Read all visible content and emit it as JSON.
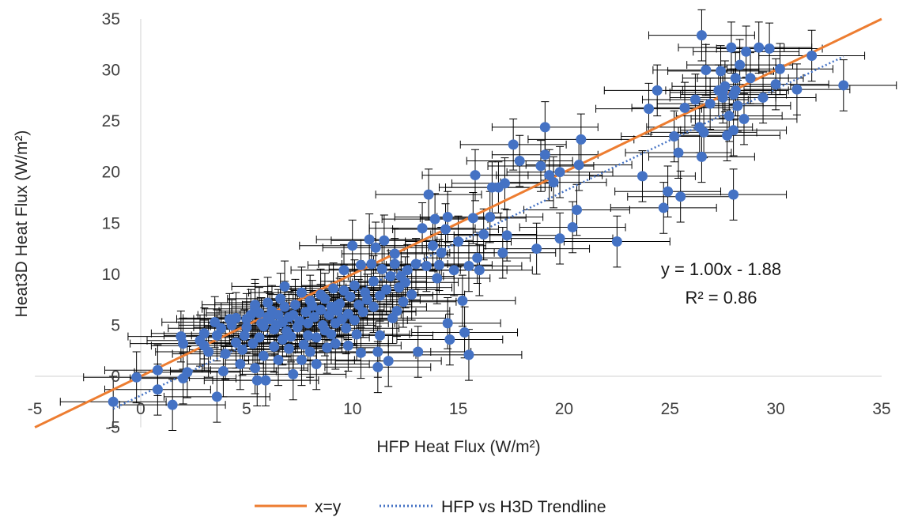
{
  "chart_data": {
    "type": "scatter",
    "xlabel": "HFP Heat Flux (W/m²)",
    "ylabel": "Heat3D Heat Flux (W/m²)",
    "xlim": [
      -5,
      35
    ],
    "ylim": [
      -5,
      35
    ],
    "x_ticks": [
      "-5",
      "0",
      "5",
      "10",
      "15",
      "20",
      "25",
      "30",
      "35"
    ],
    "y_ticks": [
      "-5",
      "0",
      "5",
      "10",
      "15",
      "20",
      "25",
      "30",
      "35"
    ],
    "x_tick_values": [
      -5,
      0,
      5,
      10,
      15,
      20,
      25,
      30,
      35
    ],
    "y_tick_values": [
      -5,
      0,
      5,
      10,
      15,
      20,
      25,
      30,
      35
    ],
    "grid": false,
    "legend_position": "bottom",
    "trendline_equation": "y = 1.00x - 1.88",
    "r_squared": "R² = 0.86",
    "error_bars": {
      "x": 2.5,
      "y": 2.5
    },
    "colors": {
      "points": "#4472c4",
      "identity": "#ed7d31",
      "trend": "#4472c4",
      "error": "#000000",
      "axis": "#d9d9d9"
    },
    "series": [
      {
        "kind": "scatter",
        "points": [
          [
            -1.3,
            -2.5
          ],
          [
            -0.2,
            -0.1
          ],
          [
            0.8,
            0.6
          ],
          [
            0.8,
            -1.3
          ],
          [
            1.5,
            -2.8
          ],
          [
            2.0,
            3.2
          ],
          [
            2.0,
            -0.2
          ],
          [
            2.2,
            0.4
          ],
          [
            1.9,
            3.9
          ],
          [
            2.8,
            3.5
          ],
          [
            3.2,
            2.4
          ],
          [
            3.0,
            3.0
          ],
          [
            3.6,
            -2.0
          ],
          [
            3.9,
            0.5
          ],
          [
            3.0,
            4.2
          ],
          [
            3.5,
            5.3
          ],
          [
            3.6,
            4.0
          ],
          [
            3.8,
            4.7
          ],
          [
            4.0,
            2.2
          ],
          [
            4.2,
            5.6
          ],
          [
            4.3,
            5.0
          ],
          [
            4.5,
            3.3
          ],
          [
            4.5,
            5.7
          ],
          [
            4.7,
            1.2
          ],
          [
            4.8,
            2.6
          ],
          [
            4.9,
            4.0
          ],
          [
            5.0,
            5.6
          ],
          [
            5.0,
            4.8
          ],
          [
            5.2,
            6.0
          ],
          [
            5.3,
            3.2
          ],
          [
            5.4,
            6.6
          ],
          [
            5.4,
            0.8
          ],
          [
            5.4,
            7.0
          ],
          [
            5.5,
            -0.4
          ],
          [
            5.6,
            3.8
          ],
          [
            5.6,
            6.2
          ],
          [
            5.7,
            5.2
          ],
          [
            5.8,
            2.0
          ],
          [
            5.9,
            -0.4
          ],
          [
            5.8,
            4.9
          ],
          [
            6.0,
            5.8
          ],
          [
            6.0,
            7.2
          ],
          [
            6.1,
            5.6
          ],
          [
            6.2,
            6.4
          ],
          [
            6.3,
            2.9
          ],
          [
            6.3,
            4.6
          ],
          [
            6.4,
            5.0
          ],
          [
            6.5,
            6.0
          ],
          [
            6.5,
            1.6
          ],
          [
            6.6,
            7.6
          ],
          [
            6.7,
            3.6
          ],
          [
            6.7,
            5.3
          ],
          [
            6.8,
            6.8
          ],
          [
            6.8,
            8.8
          ],
          [
            6.9,
            4.4
          ],
          [
            7.0,
            5.8
          ],
          [
            7.0,
            2.7
          ],
          [
            7.1,
            3.9
          ],
          [
            7.2,
            0.2
          ],
          [
            7.2,
            6.0
          ],
          [
            7.3,
            7.0
          ],
          [
            7.4,
            4.8
          ],
          [
            7.5,
            5.4
          ],
          [
            7.6,
            1.6
          ],
          [
            7.6,
            8.2
          ],
          [
            7.7,
            3.1
          ],
          [
            7.8,
            6.3
          ],
          [
            7.9,
            5.2
          ],
          [
            7.9,
            4.0
          ],
          [
            8.0,
            7.4
          ],
          [
            8.0,
            2.4
          ],
          [
            8.1,
            6.9
          ],
          [
            8.2,
            5.8
          ],
          [
            8.3,
            1.2
          ],
          [
            8.3,
            3.8
          ],
          [
            8.5,
            8.0
          ],
          [
            8.5,
            6.5
          ],
          [
            8.6,
            5.0
          ],
          [
            8.7,
            4.5
          ],
          [
            8.7,
            7.6
          ],
          [
            8.8,
            2.8
          ],
          [
            8.9,
            6.0
          ],
          [
            9.0,
            6.8
          ],
          [
            9.0,
            4.1
          ],
          [
            9.1,
            8.6
          ],
          [
            9.2,
            5.2
          ],
          [
            9.2,
            3.2
          ],
          [
            9.3,
            6.4
          ],
          [
            9.4,
            7.1
          ],
          [
            9.5,
            5.6
          ],
          [
            9.6,
            8.4
          ],
          [
            9.6,
            10.4
          ],
          [
            9.7,
            4.7
          ],
          [
            9.8,
            6.1
          ],
          [
            9.8,
            3.0
          ],
          [
            9.9,
            7.8
          ],
          [
            10.0,
            12.8
          ],
          [
            10.1,
            8.9
          ],
          [
            10.1,
            5.5
          ],
          [
            10.2,
            4.1
          ],
          [
            10.3,
            7.0
          ],
          [
            10.4,
            10.9
          ],
          [
            10.4,
            2.3
          ],
          [
            10.5,
            6.3
          ],
          [
            10.6,
            8.2
          ],
          [
            10.7,
            7.5
          ],
          [
            10.8,
            13.4
          ],
          [
            10.9,
            11.0
          ],
          [
            11.0,
            6.8
          ],
          [
            11.0,
            9.3
          ],
          [
            11.1,
            12.6
          ],
          [
            11.2,
            0.9
          ],
          [
            11.2,
            2.4
          ],
          [
            11.3,
            4.0
          ],
          [
            11.3,
            7.9
          ],
          [
            11.4,
            10.5
          ],
          [
            11.5,
            13.3
          ],
          [
            11.6,
            8.5
          ],
          [
            11.7,
            1.5
          ],
          [
            11.8,
            9.8
          ],
          [
            11.9,
            5.7
          ],
          [
            12.0,
            11.0
          ],
          [
            12.0,
            12.0
          ],
          [
            12.1,
            6.4
          ],
          [
            12.2,
            8.7
          ],
          [
            12.3,
            9.8
          ],
          [
            12.4,
            7.3
          ],
          [
            12.5,
            9.2
          ],
          [
            12.6,
            10.4
          ],
          [
            12.8,
            8.0
          ],
          [
            13.0,
            11.0
          ],
          [
            13.1,
            2.4
          ],
          [
            13.3,
            14.5
          ],
          [
            13.5,
            10.8
          ],
          [
            13.6,
            17.8
          ],
          [
            13.8,
            12.8
          ],
          [
            13.9,
            15.4
          ],
          [
            14.0,
            9.6
          ],
          [
            14.1,
            10.9
          ],
          [
            14.2,
            12.1
          ],
          [
            14.4,
            14.4
          ],
          [
            14.5,
            15.6
          ],
          [
            14.5,
            5.2
          ],
          [
            14.6,
            3.6
          ],
          [
            14.8,
            10.4
          ],
          [
            15.0,
            13.2
          ],
          [
            15.2,
            7.4
          ],
          [
            15.3,
            4.3
          ],
          [
            15.5,
            10.8
          ],
          [
            15.5,
            2.1
          ],
          [
            15.7,
            15.5
          ],
          [
            15.8,
            19.7
          ],
          [
            15.9,
            11.6
          ],
          [
            16.0,
            10.4
          ],
          [
            16.2,
            13.9
          ],
          [
            16.5,
            15.6
          ],
          [
            16.6,
            18.5
          ],
          [
            16.9,
            18.5
          ],
          [
            17.1,
            12.1
          ],
          [
            17.2,
            18.9
          ],
          [
            17.3,
            13.8
          ],
          [
            17.6,
            22.7
          ],
          [
            17.9,
            21.1
          ],
          [
            18.7,
            12.5
          ],
          [
            18.9,
            20.6
          ],
          [
            19.1,
            24.4
          ],
          [
            19.1,
            21.7
          ],
          [
            19.3,
            19.7
          ],
          [
            19.5,
            19.0
          ],
          [
            19.8,
            20.0
          ],
          [
            19.8,
            13.5
          ],
          [
            20.4,
            14.6
          ],
          [
            20.6,
            16.3
          ],
          [
            20.7,
            20.7
          ],
          [
            20.8,
            23.2
          ],
          [
            22.5,
            13.2
          ],
          [
            23.7,
            19.6
          ],
          [
            24.0,
            26.2
          ],
          [
            24.4,
            28.0
          ],
          [
            24.7,
            16.5
          ],
          [
            24.9,
            18.1
          ],
          [
            25.2,
            23.5
          ],
          [
            25.4,
            21.9
          ],
          [
            25.5,
            17.6
          ],
          [
            25.7,
            26.3
          ],
          [
            26.2,
            27.1
          ],
          [
            26.4,
            24.4
          ],
          [
            26.5,
            21.5
          ],
          [
            26.5,
            33.4
          ],
          [
            26.6,
            23.9
          ],
          [
            26.7,
            30.0
          ],
          [
            26.9,
            26.7
          ],
          [
            27.3,
            28.0
          ],
          [
            27.4,
            29.9
          ],
          [
            27.5,
            27.3
          ],
          [
            27.6,
            28.4
          ],
          [
            27.7,
            23.6
          ],
          [
            27.8,
            25.5
          ],
          [
            27.9,
            32.2
          ],
          [
            28.0,
            27.6
          ],
          [
            28.0,
            24.1
          ],
          [
            28.0,
            17.8
          ],
          [
            28.1,
            29.2
          ],
          [
            28.2,
            26.5
          ],
          [
            28.3,
            30.5
          ],
          [
            28.5,
            25.2
          ],
          [
            28.6,
            31.8
          ],
          [
            28.8,
            29.2
          ],
          [
            29.2,
            32.2
          ],
          [
            29.4,
            27.3
          ],
          [
            29.7,
            32.1
          ],
          [
            30.0,
            28.6
          ],
          [
            30.2,
            30.1
          ],
          [
            31.0,
            28.1
          ],
          [
            31.7,
            31.4
          ],
          [
            33.2,
            28.5
          ],
          [
            27.5,
            27.8
          ],
          [
            28.1,
            28.0
          ]
        ]
      },
      {
        "kind": "line",
        "name": "x=y",
        "x": [
          -5,
          35
        ],
        "y": [
          -5,
          35
        ]
      },
      {
        "kind": "trendline",
        "name": "HFP vs H3D Trendline",
        "x": [
          -1.3,
          33.2
        ],
        "y": [
          -3.18,
          31.32
        ]
      }
    ]
  }
}
